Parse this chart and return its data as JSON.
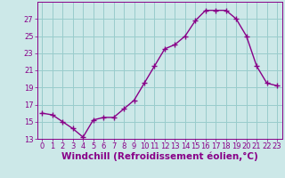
{
  "x": [
    0,
    1,
    2,
    3,
    4,
    5,
    6,
    7,
    8,
    9,
    10,
    11,
    12,
    13,
    14,
    15,
    16,
    17,
    18,
    19,
    20,
    21,
    22,
    23
  ],
  "y": [
    16.0,
    15.8,
    15.0,
    14.2,
    13.2,
    15.2,
    15.5,
    15.5,
    16.5,
    17.5,
    19.5,
    21.5,
    23.5,
    24.0,
    25.0,
    26.8,
    28.0,
    28.0,
    28.0,
    27.0,
    25.0,
    21.5,
    19.5,
    19.2
  ],
  "line_color": "#880088",
  "marker": "+",
  "marker_size": 4,
  "marker_linewidth": 1.0,
  "bg_color": "#cce8e8",
  "grid_color": "#99cccc",
  "xlabel": "Windchill (Refroidissement éolien,°C)",
  "ylim": [
    13,
    29
  ],
  "xlim": [
    -0.5,
    23.5
  ],
  "yticks": [
    13,
    15,
    17,
    19,
    21,
    23,
    25,
    27
  ],
  "xticks": [
    0,
    1,
    2,
    3,
    4,
    5,
    6,
    7,
    8,
    9,
    10,
    11,
    12,
    13,
    14,
    15,
    16,
    17,
    18,
    19,
    20,
    21,
    22,
    23
  ],
  "tick_color": "#880088",
  "label_color": "#880088",
  "tick_fontsize": 6,
  "xlabel_fontsize": 7.5,
  "linewidth": 1.0
}
